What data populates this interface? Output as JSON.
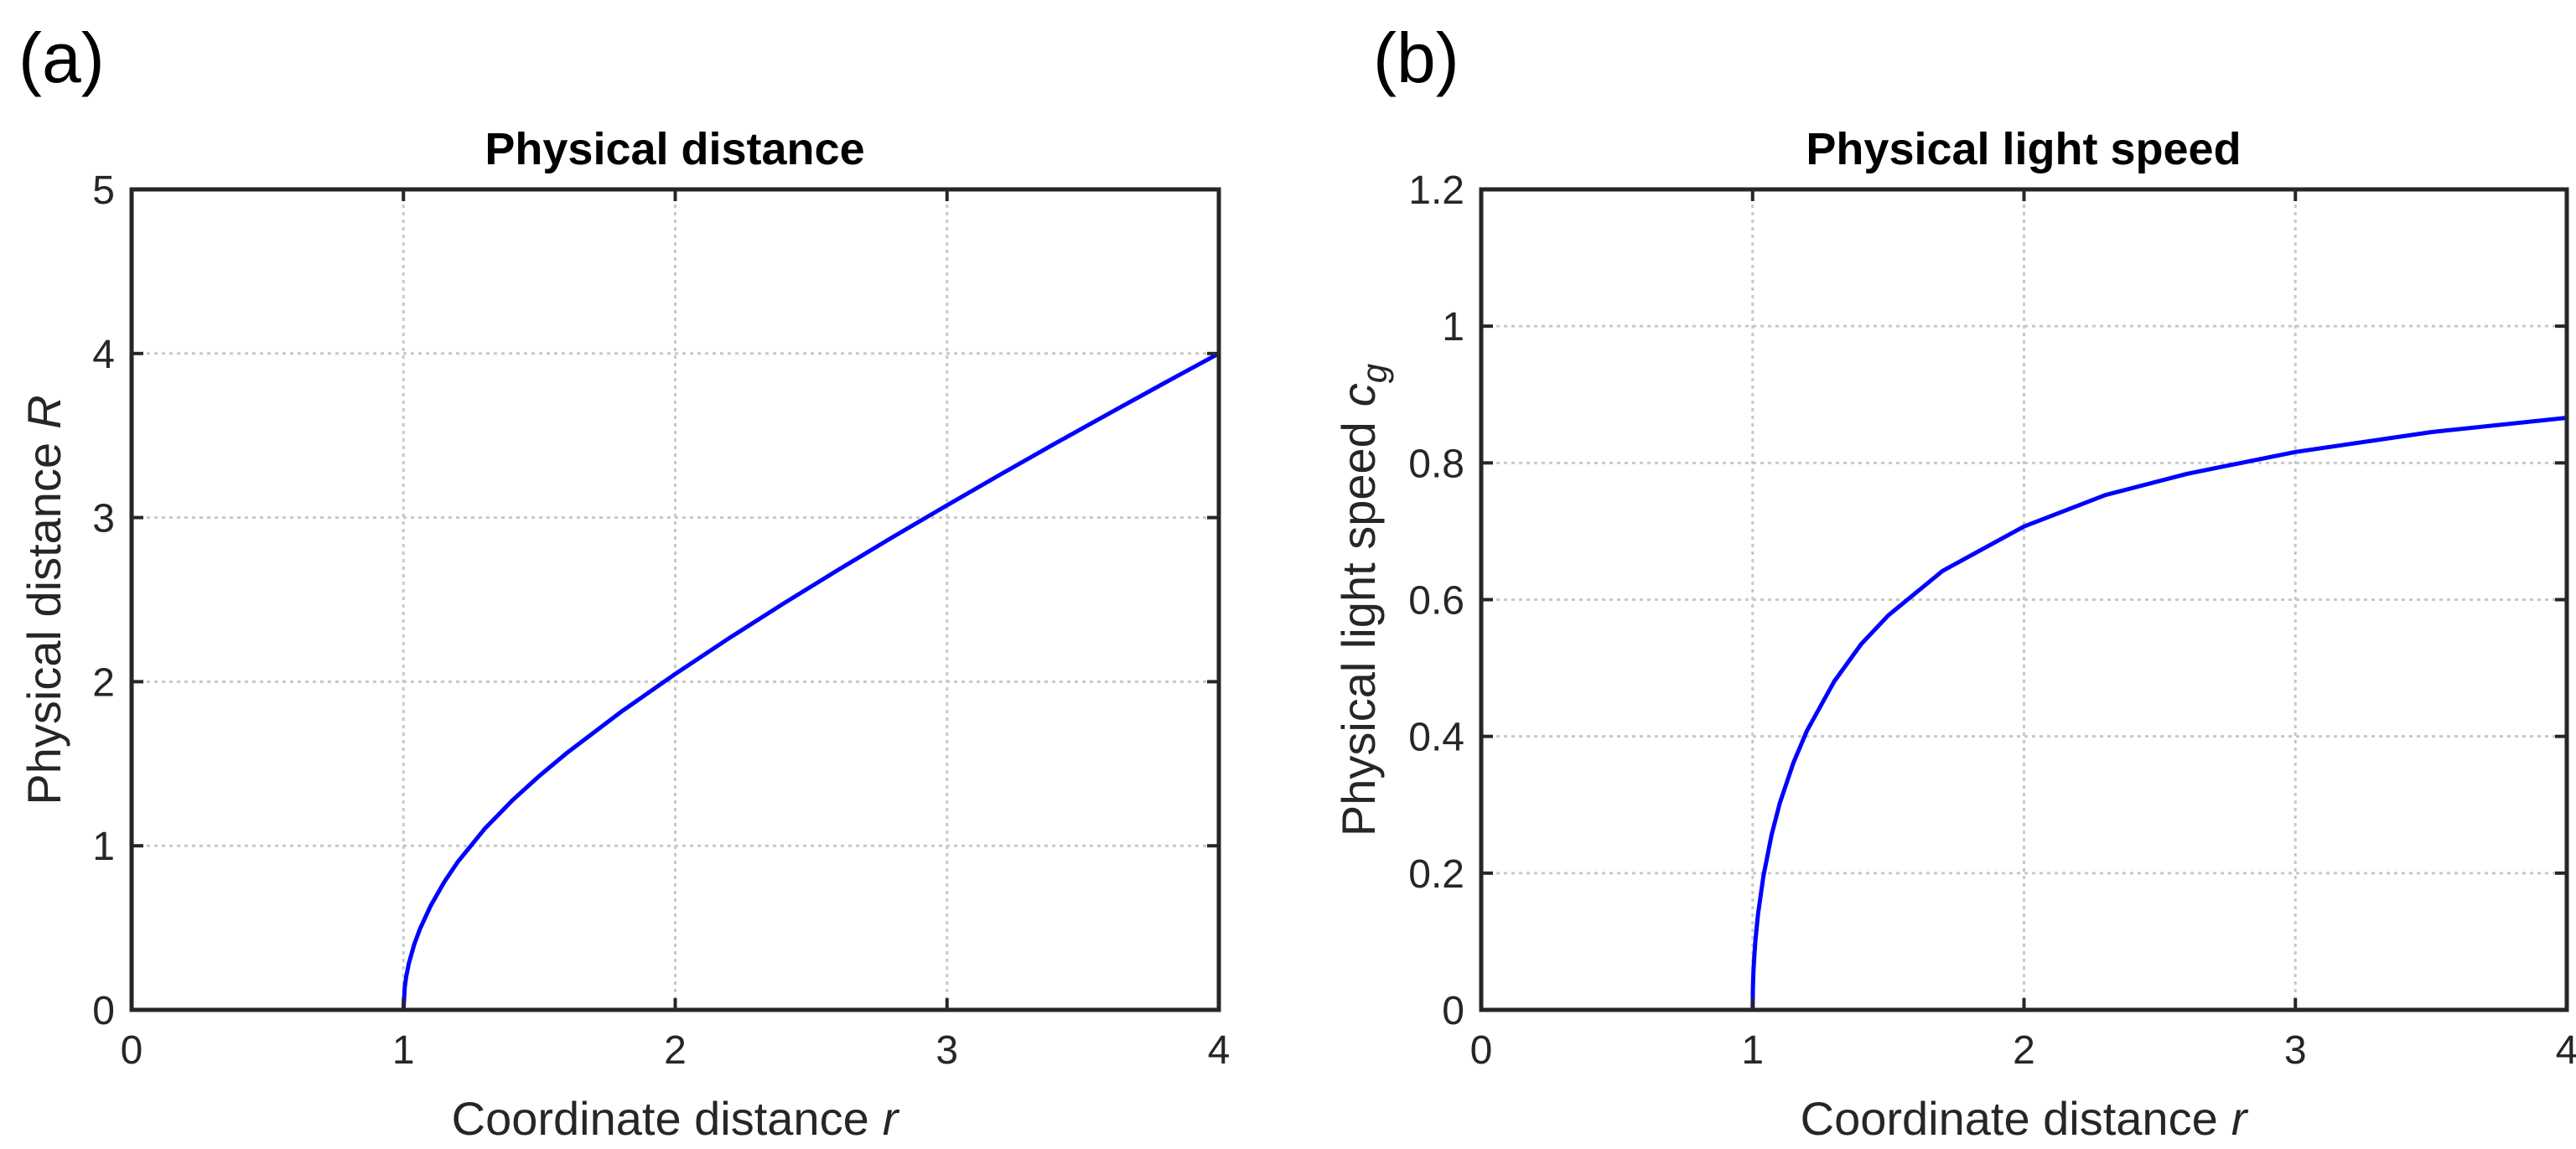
{
  "chart_data": [
    {
      "type": "line",
      "panel_label": "(a)",
      "title": "Physical distance",
      "xlabel": "Coordinate distance",
      "xlabel_var": "r",
      "ylabel": "Physical distance",
      "ylabel_var": "R",
      "xlim": [
        0,
        4
      ],
      "ylim": [
        0,
        5
      ],
      "xticks": [
        0,
        1,
        2,
        3,
        4
      ],
      "yticks": [
        0,
        1,
        2,
        3,
        4,
        5
      ],
      "ytick_labels": [
        "0",
        "1",
        "2",
        "3",
        "4",
        "5"
      ],
      "grid": true,
      "series": [
        {
          "name": "R(r)",
          "color": "#0000ff",
          "x": [
            1.0,
            1.005,
            1.01,
            1.02,
            1.04,
            1.06,
            1.1,
            1.15,
            1.2,
            1.3,
            1.4,
            1.5,
            1.6,
            1.8,
            2.0,
            2.2,
            2.4,
            2.6,
            2.8,
            3.0,
            3.2,
            3.4,
            3.6,
            3.8,
            4.0
          ],
          "y": [
            0.0,
            0.141,
            0.2,
            0.283,
            0.4,
            0.49,
            0.634,
            0.779,
            0.902,
            1.105,
            1.276,
            1.426,
            1.564,
            1.815,
            2.047,
            2.267,
            2.478,
            2.682,
            2.881,
            3.075,
            3.266,
            3.454,
            3.638,
            3.82,
            4.0
          ]
        }
      ]
    },
    {
      "type": "line",
      "panel_label": "(b)",
      "title": "Physical light speed",
      "xlabel": "Coordinate distance",
      "xlabel_var": "r",
      "ylabel": "Physical light speed",
      "ylabel_var": "c",
      "ylabel_sub": "g",
      "xlim": [
        0,
        4
      ],
      "ylim": [
        0,
        1.2
      ],
      "xticks": [
        0,
        1,
        2,
        3,
        4
      ],
      "yticks": [
        0,
        0.2,
        0.4,
        0.6,
        0.8,
        1.0,
        1.2
      ],
      "ytick_labels": [
        "0",
        "0.2",
        "0.4",
        "0.6",
        "0.8",
        "1",
        "1.2"
      ],
      "grid": true,
      "series": [
        {
          "name": "c_g(r)",
          "color": "#0000ff",
          "x": [
            1.0,
            1.001,
            1.003,
            1.006,
            1.01,
            1.02,
            1.04,
            1.07,
            1.1,
            1.15,
            1.2,
            1.3,
            1.4,
            1.5,
            1.7,
            2.0,
            2.3,
            2.6,
            3.0,
            3.5,
            4.0
          ],
          "y": [
            0.0,
            0.032,
            0.055,
            0.077,
            0.1,
            0.14,
            0.196,
            0.256,
            0.302,
            0.361,
            0.408,
            0.48,
            0.535,
            0.577,
            0.642,
            0.707,
            0.753,
            0.784,
            0.816,
            0.845,
            0.866
          ]
        }
      ]
    }
  ]
}
